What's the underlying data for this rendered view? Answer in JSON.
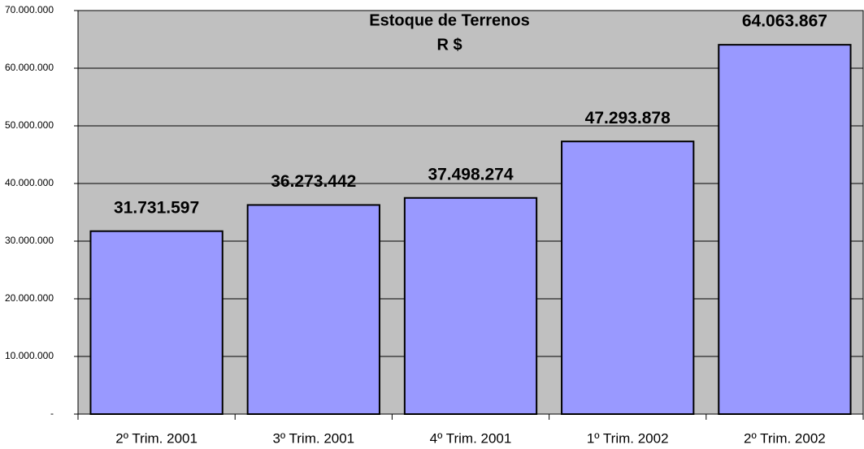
{
  "chart_data": {
    "type": "bar",
    "title": "Estoque de Terrenos",
    "subtitle": "R $",
    "categories": [
      "2º Trim. 2001",
      "3º Trim. 2001",
      "4º Trim. 2001",
      "1º Trim. 2002",
      "2º Trim. 2002"
    ],
    "values": [
      31731597,
      36273442,
      37498274,
      47293878,
      64063867
    ],
    "value_labels": [
      "31.731.597",
      "36.273.442",
      "37.498.274",
      "47.293.878",
      "64.063.867"
    ],
    "color": "#9999ff",
    "plot_background": "#c0c0c0",
    "ylim": [
      0,
      70000000
    ],
    "yticks": [
      {
        "value": 0,
        "label": "-"
      },
      {
        "value": 10000000,
        "label": "10.000.000"
      },
      {
        "value": 20000000,
        "label": "20.000.000"
      },
      {
        "value": 30000000,
        "label": "30.000.000"
      },
      {
        "value": 40000000,
        "label": "40.000.000"
      },
      {
        "value": 50000000,
        "label": "50.000.000"
      },
      {
        "value": 60000000,
        "label": "60.000.000"
      },
      {
        "value": 70000000,
        "label": "70.000.000"
      }
    ],
    "grid": true
  }
}
